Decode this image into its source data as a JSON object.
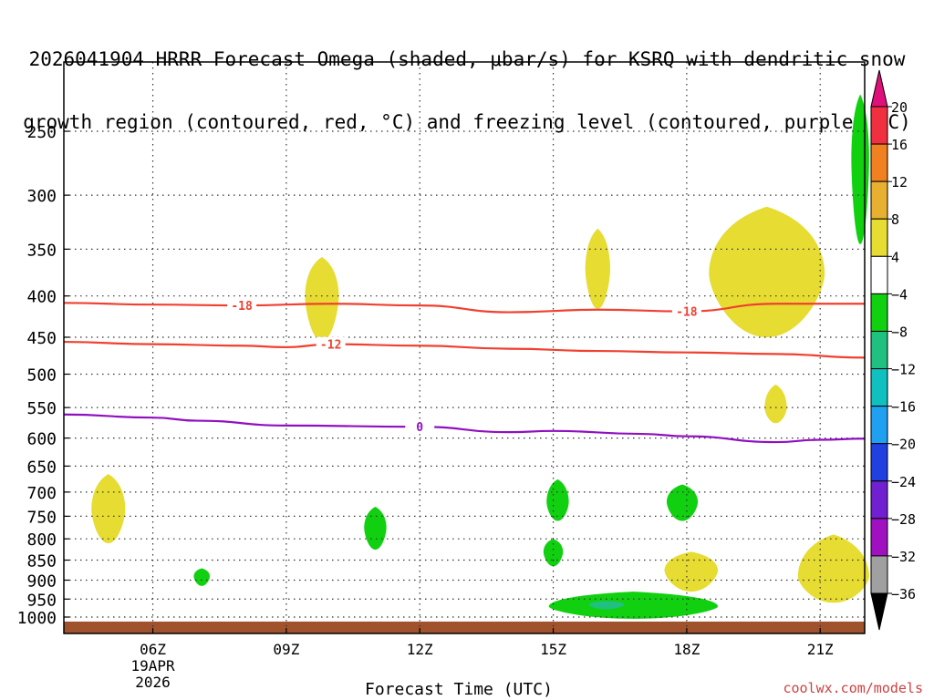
{
  "title_lines": [
    "2026041904 HRRR Forecast Omega (shaded, μbar/s) for KSRQ with dendritic snow",
    "growth region (contoured, red, °C) and freezing level (contoured, purple, °C)"
  ],
  "credit": "coolwx.com/models",
  "chart_data": {
    "type": "contour",
    "xlabel": "Forecast Time (UTC)",
    "ylabel": "",
    "x_ticks": [
      {
        "hour": 6,
        "label": "06Z"
      },
      {
        "hour": 9,
        "label": "09Z"
      },
      {
        "hour": 12,
        "label": "12Z"
      },
      {
        "hour": 15,
        "label": "15Z"
      },
      {
        "hour": 18,
        "label": "18Z"
      },
      {
        "hour": 21,
        "label": "21Z"
      }
    ],
    "x_date_label": [
      "19APR",
      "2026"
    ],
    "xlim": [
      4,
      22
    ],
    "ylim_pressure_hpa": [
      1030,
      200
    ],
    "y_ticks": [
      250,
      300,
      350,
      400,
      450,
      500,
      550,
      600,
      650,
      700,
      750,
      800,
      850,
      900,
      950,
      1000
    ],
    "y_scale": "log",
    "grid": "dotted",
    "contours": [
      {
        "level_label": "-18",
        "color": "#f04030",
        "points": [
          [
            4,
            408
          ],
          [
            6,
            410
          ],
          [
            8,
            411
          ],
          [
            10,
            409
          ],
          [
            12,
            411
          ],
          [
            14,
            419
          ],
          [
            16,
            416
          ],
          [
            18,
            418
          ],
          [
            20,
            409
          ],
          [
            22,
            409
          ]
        ],
        "label_at": [
          [
            8,
            411
          ],
          [
            18,
            418
          ]
        ]
      },
      {
        "level_label": "-12",
        "color": "#f04030",
        "points": [
          [
            4,
            456
          ],
          [
            6,
            459
          ],
          [
            8,
            461
          ],
          [
            9,
            463
          ],
          [
            10,
            459
          ],
          [
            12,
            461
          ],
          [
            14,
            465
          ],
          [
            16,
            468
          ],
          [
            18,
            470
          ],
          [
            20,
            472
          ],
          [
            22,
            477
          ]
        ],
        "label_at": [
          [
            10,
            459
          ]
        ]
      },
      {
        "level_label": "0",
        "color": "#9010c0",
        "points": [
          [
            4,
            561
          ],
          [
            6,
            566
          ],
          [
            7,
            571
          ],
          [
            9,
            579
          ],
          [
            12,
            581
          ],
          [
            14,
            590
          ],
          [
            15,
            588
          ],
          [
            17,
            593
          ],
          [
            18,
            597
          ],
          [
            20,
            607
          ],
          [
            21,
            603
          ],
          [
            22,
            601
          ]
        ],
        "label_at": [
          [
            12,
            581
          ]
        ]
      }
    ],
    "shaded_regions": [
      {
        "color": "#e6dc32",
        "center_hour": 5.0,
        "center_p": 735,
        "half_width_h": 0.38,
        "p_top": 665,
        "p_bottom": 810
      },
      {
        "color": "#e6dc32",
        "center_hour": 9.8,
        "center_p": 400,
        "half_width_h": 0.38,
        "p_top": 358,
        "p_bottom": 455
      },
      {
        "color": "#e6dc32",
        "center_hour": 16.0,
        "center_p": 370,
        "half_width_h": 0.28,
        "p_top": 330,
        "p_bottom": 415
      },
      {
        "color": "#e6dc32",
        "center_hour": 19.8,
        "center_p": 375,
        "half_width_h": 1.3,
        "p_top": 310,
        "p_bottom": 450
      },
      {
        "color": "#e6dc32",
        "center_hour": 20.0,
        "center_p": 550,
        "half_width_h": 0.25,
        "p_top": 515,
        "p_bottom": 575
      },
      {
        "color": "#e6dc32",
        "center_hour": 18.1,
        "center_p": 875,
        "half_width_h": 0.6,
        "p_top": 830,
        "p_bottom": 930
      },
      {
        "color": "#e6dc32",
        "center_hour": 21.3,
        "center_p": 890,
        "half_width_h": 0.8,
        "p_top": 790,
        "p_bottom": 960
      },
      {
        "color": "#10d010",
        "center_hour": 7.1,
        "center_p": 890,
        "half_width_h": 0.18,
        "p_top": 870,
        "p_bottom": 915
      },
      {
        "color": "#10d010",
        "center_hour": 11.0,
        "center_p": 775,
        "half_width_h": 0.25,
        "p_top": 730,
        "p_bottom": 825
      },
      {
        "color": "#10d010",
        "center_hour": 15.1,
        "center_p": 720,
        "half_width_h": 0.25,
        "p_top": 675,
        "p_bottom": 760
      },
      {
        "color": "#10d010",
        "center_hour": 15.0,
        "center_p": 830,
        "half_width_h": 0.22,
        "p_top": 800,
        "p_bottom": 865
      },
      {
        "color": "#10d010",
        "center_hour": 17.9,
        "center_p": 720,
        "half_width_h": 0.35,
        "p_top": 685,
        "p_bottom": 760
      },
      {
        "color": "#10d010",
        "center_hour": 16.8,
        "center_p": 970,
        "half_width_h": 1.9,
        "p_top": 930,
        "p_bottom": 1005
      },
      {
        "color": "#20c080",
        "center_hour": 16.2,
        "center_p": 965,
        "half_width_h": 0.4,
        "p_top": 955,
        "p_bottom": 978
      },
      {
        "color": "#10d010",
        "center_hour": 21.9,
        "center_p": 270,
        "half_width_h": 0.2,
        "p_top": 225,
        "p_bottom": 345
      }
    ],
    "ground_band_color": "#a0522d",
    "colorbar": {
      "units": "μbar/s",
      "labels": [
        "20",
        "16",
        "12",
        "8",
        "4",
        "−4",
        "−8",
        "−12",
        "−16",
        "−20",
        "−24",
        "−28",
        "−32",
        "−36"
      ],
      "colors": [
        "#f03040",
        "#f08020",
        "#e8b030",
        "#e6dc32",
        "#ffffff",
        "#10d010",
        "#20c080",
        "#10c0c0",
        "#20a0f0",
        "#2040e0",
        "#7020d0",
        "#a010c0",
        "#a0a0a0"
      ],
      "top_cap_color": "#e0107a",
      "bottom_cap_color": "#000000"
    }
  }
}
